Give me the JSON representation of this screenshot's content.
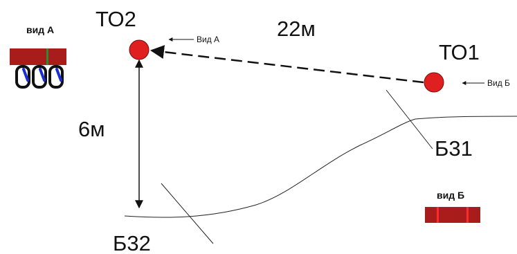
{
  "points": {
    "to1": {
      "label": "ТО1",
      "view_label": "Вид Б"
    },
    "to2": {
      "label": "ТО2",
      "view_label": "Вид А"
    }
  },
  "distances": {
    "horizontal": "22м",
    "vertical": "6м"
  },
  "zones": {
    "b31": "Б31",
    "b32": "Б32"
  },
  "views": {
    "a": {
      "title": "вид А"
    },
    "b": {
      "title": "вид Б"
    }
  },
  "colors": {
    "point_fill": "#e02020",
    "band_fill": "#a81c1c",
    "band_stripe_a": "#2e8b2e",
    "band_stripe_b": "#ff2a2a",
    "carabiner_accent": "#1a2fd0"
  }
}
